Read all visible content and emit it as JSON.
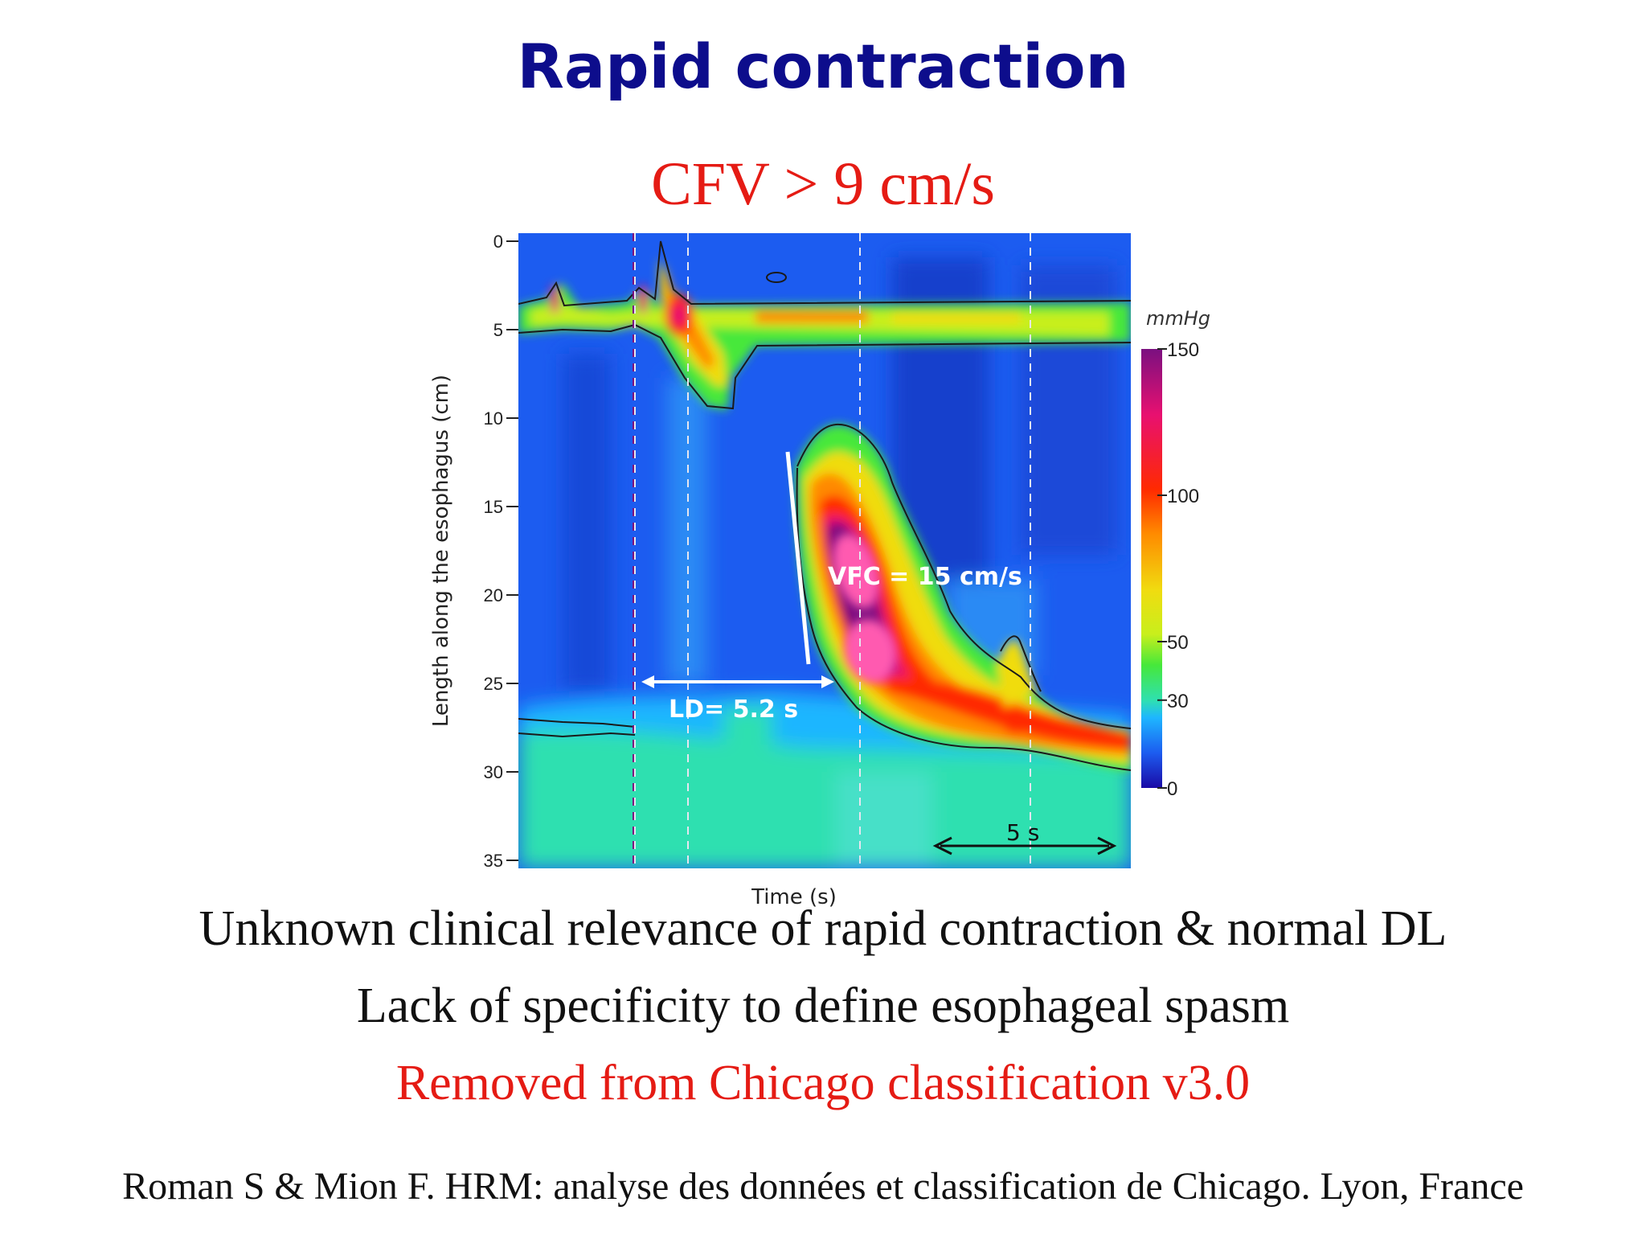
{
  "slide": {
    "title": "Rapid contraction",
    "subtitle": "CFV > 9 cm/s",
    "bullets": [
      "Unknown clinical relevance of rapid contraction & normal DL",
      "Lack of specificity to define esophageal spasm",
      "Removed from Chicago classification v3.0"
    ],
    "reference": "Roman S & Mion F. HRM: analyse des données et classification de Chicago. Lyon, France"
  },
  "colors": {
    "title": "#0d0d8c",
    "accent_red": "#e51b14",
    "text": "#111111"
  },
  "chart_data": {
    "type": "heatmap",
    "xlabel": "Time (s)",
    "ylabel": "Length along the esophagus (cm)",
    "y_ticks": [
      "0",
      "5",
      "10",
      "15",
      "20",
      "25",
      "30",
      "35"
    ],
    "ylim": [
      0,
      35
    ],
    "y_inverted": true,
    "colorbar": {
      "unit": "mmHg",
      "ticks": [
        "150",
        "100",
        "50",
        "30",
        "0"
      ],
      "tick_values": [
        150,
        100,
        50,
        30,
        0
      ],
      "colors": [
        "#1a0aa6",
        "#1c5cf0",
        "#1eb6ff",
        "#2fe0b0",
        "#46e83a",
        "#c8ef1c",
        "#f0dc10",
        "#ff8a00",
        "#ff2a00",
        "#e81070",
        "#7a1080"
      ],
      "isocontour": "30"
    },
    "annotations": {
      "vfc": "VFC = 15 cm/s",
      "ld": "LD= 5.2 s",
      "scale": "5 s"
    }
  }
}
